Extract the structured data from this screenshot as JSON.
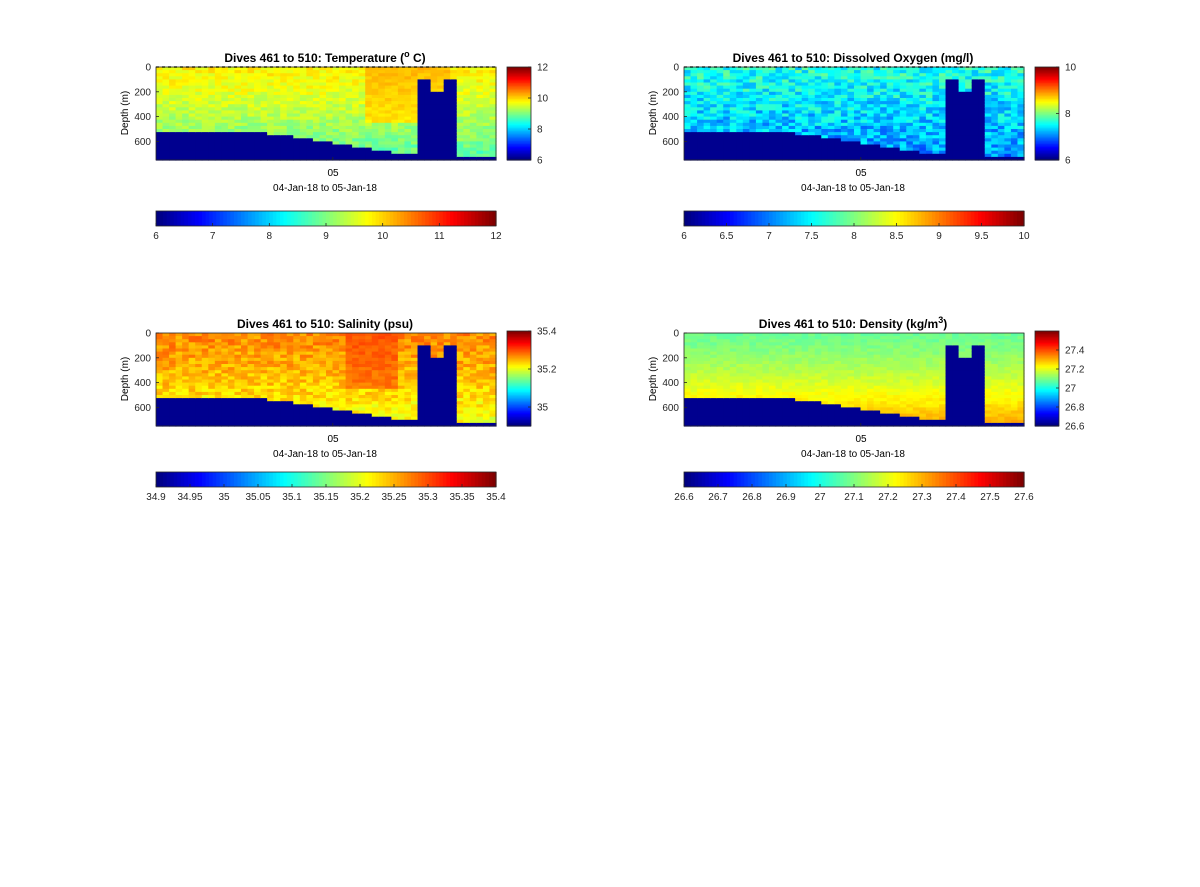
{
  "chart_data": [
    {
      "type": "heatmap",
      "title": "Dives 461 to 510: Temperature (",
      "title_sup": "o",
      "title_end": " C)",
      "ylabel": "Depth (m)",
      "x_tick": "05",
      "xlabel": "04-Jan-18 to 05-Jan-18",
      "y_ticks": [
        "0",
        "200",
        "400",
        "600"
      ],
      "y_range": [
        0,
        750
      ],
      "clim": [
        6,
        12
      ],
      "side_ticks": [
        "6",
        "8",
        "10",
        "12"
      ],
      "bottom_ticks": [
        "6",
        "7",
        "8",
        "9",
        "10",
        "11",
        "12"
      ],
      "surface_value": 9.8,
      "deep_value": 8.7,
      "noise": 0.25,
      "warm_spot": [
        0.62,
        0.88,
        10.5
      ]
    },
    {
      "type": "heatmap",
      "title": "Dives 461 to 510: Dissolved Oxygen (mg/l)",
      "title_sup": "",
      "title_end": "",
      "ylabel": "Depth (m)",
      "x_tick": "05",
      "xlabel": "04-Jan-18 to 05-Jan-18",
      "y_ticks": [
        "0",
        "200",
        "400",
        "600"
      ],
      "y_range": [
        0,
        750
      ],
      "clim": [
        6,
        10
      ],
      "side_ticks": [
        "6",
        "8",
        "10"
      ],
      "bottom_ticks": [
        "6",
        "6.5",
        "7",
        "7.5",
        "8",
        "8.5",
        "9",
        "9.5",
        "10"
      ],
      "surface_value": 7.6,
      "deep_value": 7.0,
      "noise": 0.35,
      "warm_spot": [
        0,
        0,
        0
      ]
    },
    {
      "type": "heatmap",
      "title": "Dives 461 to 510: Salinity (psu)",
      "title_sup": "",
      "title_end": "",
      "ylabel": "Depth (m)",
      "x_tick": "05",
      "xlabel": "04-Jan-18 to 05-Jan-18",
      "y_ticks": [
        "0",
        "200",
        "400",
        "600"
      ],
      "y_range": [
        0,
        750
      ],
      "clim": [
        34.9,
        35.4
      ],
      "side_ticks": [
        "35",
        "35.2",
        "35.4"
      ],
      "bottom_ticks": [
        "34.9",
        "34.95",
        "35",
        "35.05",
        "35.1",
        "35.15",
        "35.2",
        "35.25",
        "35.3",
        "35.35",
        "35.4"
      ],
      "surface_value": 35.27,
      "deep_value": 35.2,
      "noise": 0.025,
      "warm_spot": [
        0.55,
        0.72,
        35.32
      ]
    },
    {
      "type": "heatmap",
      "title": "Dives 461 to 510: Density (kg/m",
      "title_sup": "3",
      "title_end": ")",
      "ylabel": "Depth (m)",
      "x_tick": "05",
      "xlabel": "04-Jan-18 to 05-Jan-18",
      "y_ticks": [
        "0",
        "200",
        "400",
        "600"
      ],
      "y_range": [
        0,
        750
      ],
      "clim": [
        26.6,
        27.6
      ],
      "side_ticks": [
        "26.6",
        "26.8",
        "27",
        "27.2",
        "27.4"
      ],
      "bottom_ticks": [
        "26.6",
        "26.7",
        "26.8",
        "26.9",
        "27",
        "27.1",
        "27.2",
        "27.3",
        "27.4",
        "27.5",
        "27.6"
      ],
      "surface_value": 27.08,
      "deep_value": 27.32,
      "noise": 0.02,
      "warm_spot": [
        0,
        0,
        0
      ]
    }
  ],
  "no_data_color": "#00008f",
  "colormap": "jet"
}
